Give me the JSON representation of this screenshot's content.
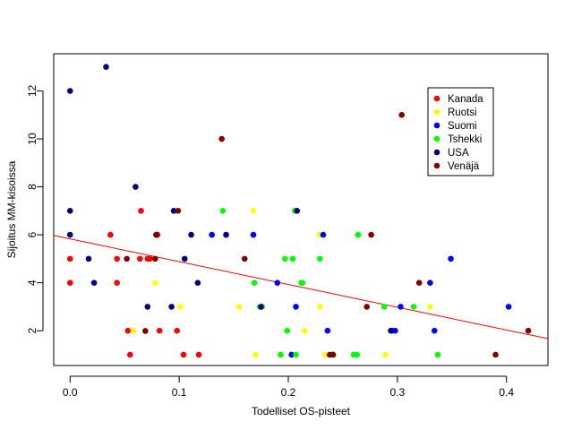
{
  "chart_data": {
    "type": "scatter",
    "title": "",
    "xlabel": "Todelliset OS-pisteet",
    "ylabel": "Sijoitus MM-kisoissa",
    "xlim": [
      -0.015,
      0.438
    ],
    "ylim": [
      0.55,
      13.55
    ],
    "x_ticks": [
      0.0,
      0.1,
      0.2,
      0.3,
      0.4
    ],
    "x_tick_labels": [
      "0.0",
      "0.1",
      "0.2",
      "0.3",
      "0.4"
    ],
    "y_ticks": [
      2,
      4,
      6,
      8,
      10,
      12
    ],
    "y_tick_labels": [
      "2",
      "4",
      "6",
      "8",
      "10",
      "12"
    ],
    "grid": false,
    "legend_position": "top-right",
    "regression_line": {
      "color": "#ff0000",
      "intercept": 5.83,
      "slope": -9.5
    },
    "series": [
      {
        "name": "Kanada",
        "color": "#ff0000",
        "points": [
          [
            0.0,
            5
          ],
          [
            0.0,
            4
          ],
          [
            0.037,
            6
          ],
          [
            0.043,
            5
          ],
          [
            0.043,
            4
          ],
          [
            0.053,
            2
          ],
          [
            0.055,
            1
          ],
          [
            0.064,
            5
          ],
          [
            0.065,
            7
          ],
          [
            0.071,
            5
          ],
          [
            0.073,
            5
          ],
          [
            0.08,
            6
          ],
          [
            0.082,
            2
          ],
          [
            0.098,
            2
          ],
          [
            0.104,
            1
          ],
          [
            0.118,
            1
          ]
        ]
      },
      {
        "name": "Ruotsi",
        "color": "#ffff00",
        "points": [
          [
            0.058,
            2
          ],
          [
            0.078,
            4
          ],
          [
            0.101,
            3
          ],
          [
            0.155,
            3
          ],
          [
            0.168,
            7
          ],
          [
            0.17,
            1
          ],
          [
            0.193,
            1
          ],
          [
            0.215,
            2
          ],
          [
            0.229,
            6
          ],
          [
            0.229,
            3
          ],
          [
            0.234,
            1
          ],
          [
            0.289,
            1
          ],
          [
            0.296,
            2
          ],
          [
            0.33,
            3
          ]
        ]
      },
      {
        "name": "Suomi",
        "color": "#0000ff",
        "points": [
          [
            0.13,
            6
          ],
          [
            0.168,
            6
          ],
          [
            0.19,
            4
          ],
          [
            0.203,
            1
          ],
          [
            0.207,
            3
          ],
          [
            0.232,
            6
          ],
          [
            0.236,
            2
          ],
          [
            0.295,
            2
          ],
          [
            0.298,
            2
          ],
          [
            0.303,
            3
          ],
          [
            0.33,
            4
          ],
          [
            0.334,
            2
          ],
          [
            0.349,
            5
          ],
          [
            0.402,
            3
          ]
        ]
      },
      {
        "name": "Tshekki",
        "color": "#00ff00",
        "points": [
          [
            0.14,
            7
          ],
          [
            0.169,
            4
          ],
          [
            0.174,
            3
          ],
          [
            0.176,
            3
          ],
          [
            0.193,
            1
          ],
          [
            0.197,
            5
          ],
          [
            0.199,
            2
          ],
          [
            0.204,
            5
          ],
          [
            0.206,
            7
          ],
          [
            0.207,
            1
          ],
          [
            0.212,
            4
          ],
          [
            0.213,
            4
          ],
          [
            0.229,
            5
          ],
          [
            0.26,
            1
          ],
          [
            0.263,
            1
          ],
          [
            0.264,
            6
          ],
          [
            0.288,
            3
          ],
          [
            0.315,
            3
          ],
          [
            0.337,
            1
          ]
        ]
      },
      {
        "name": "USA",
        "color": "#000080",
        "points": [
          [
            0.0,
            12
          ],
          [
            0.0,
            7
          ],
          [
            0.0,
            6
          ],
          [
            0.017,
            5
          ],
          [
            0.022,
            4
          ],
          [
            0.033,
            13
          ],
          [
            0.06,
            8
          ],
          [
            0.071,
            3
          ],
          [
            0.079,
            6
          ],
          [
            0.093,
            3
          ],
          [
            0.095,
            7
          ],
          [
            0.105,
            5
          ],
          [
            0.111,
            6
          ],
          [
            0.117,
            4
          ],
          [
            0.143,
            6
          ],
          [
            0.175,
            3
          ],
          [
            0.208,
            7
          ],
          [
            0.241,
            1
          ],
          [
            0.294,
            2
          ]
        ]
      },
      {
        "name": "Venäjä",
        "color": "#800000",
        "points": [
          [
            0.052,
            5
          ],
          [
            0.069,
            1.99
          ],
          [
            0.078,
            5
          ],
          [
            0.079,
            6
          ],
          [
            0.099,
            7
          ],
          [
            0.139,
            10
          ],
          [
            0.16,
            5
          ],
          [
            0.238,
            1
          ],
          [
            0.241,
            1
          ],
          [
            0.276,
            6
          ],
          [
            0.272,
            3
          ],
          [
            0.304,
            11
          ],
          [
            0.32,
            4
          ],
          [
            0.39,
            1
          ],
          [
            0.42,
            2
          ]
        ]
      }
    ]
  }
}
